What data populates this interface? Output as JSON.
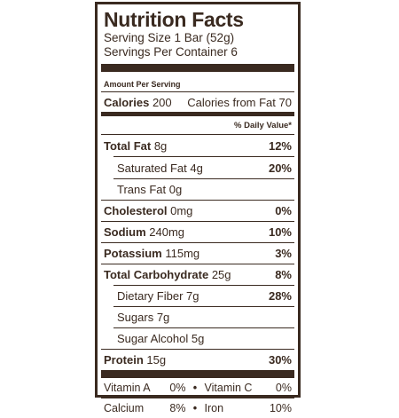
{
  "title": "Nutrition Facts",
  "serving_size": "Serving Size 1 Bar (52g)",
  "servings_per_container": "Servings Per Container 6",
  "amount_per_serving": "Amount Per Serving",
  "calories": {
    "label": "Calories",
    "value": "200",
    "from_fat_label": "Calories from Fat",
    "from_fat_value": "70"
  },
  "daily_value_header": "% Daily Value*",
  "nutrients": [
    {
      "name": "Total Fat",
      "amount": "8g",
      "dv": "12%"
    },
    {
      "name": "Saturated Fat",
      "amount": "4g",
      "dv": "20%"
    },
    {
      "name": "Trans Fat",
      "amount": "0g",
      "dv": ""
    },
    {
      "name": "Cholesterol",
      "amount": "0mg",
      "dv": "0%"
    },
    {
      "name": "Sodium",
      "amount": "240mg",
      "dv": "10%"
    },
    {
      "name": "Potassium",
      "amount": "115mg",
      "dv": "3%"
    },
    {
      "name": "Total Carbohydrate",
      "amount": "25g",
      "dv": "8%"
    },
    {
      "name": "Dietary Fiber",
      "amount": "7g",
      "dv": "28%"
    },
    {
      "name": "Sugars",
      "amount": "7g",
      "dv": ""
    },
    {
      "name": "Sugar Alcohol",
      "amount": "5g",
      "dv": ""
    },
    {
      "name": "Protein",
      "amount": "15g",
      "dv": "30%"
    }
  ],
  "vitamins": [
    {
      "left_name": "Vitamin A",
      "left_dv": "0%",
      "right_name": "Vitamin C",
      "right_dv": "0%"
    },
    {
      "left_name": "Calcium",
      "left_dv": "8%",
      "right_name": "Iron",
      "right_dv": "10%"
    }
  ],
  "bullet": "•"
}
